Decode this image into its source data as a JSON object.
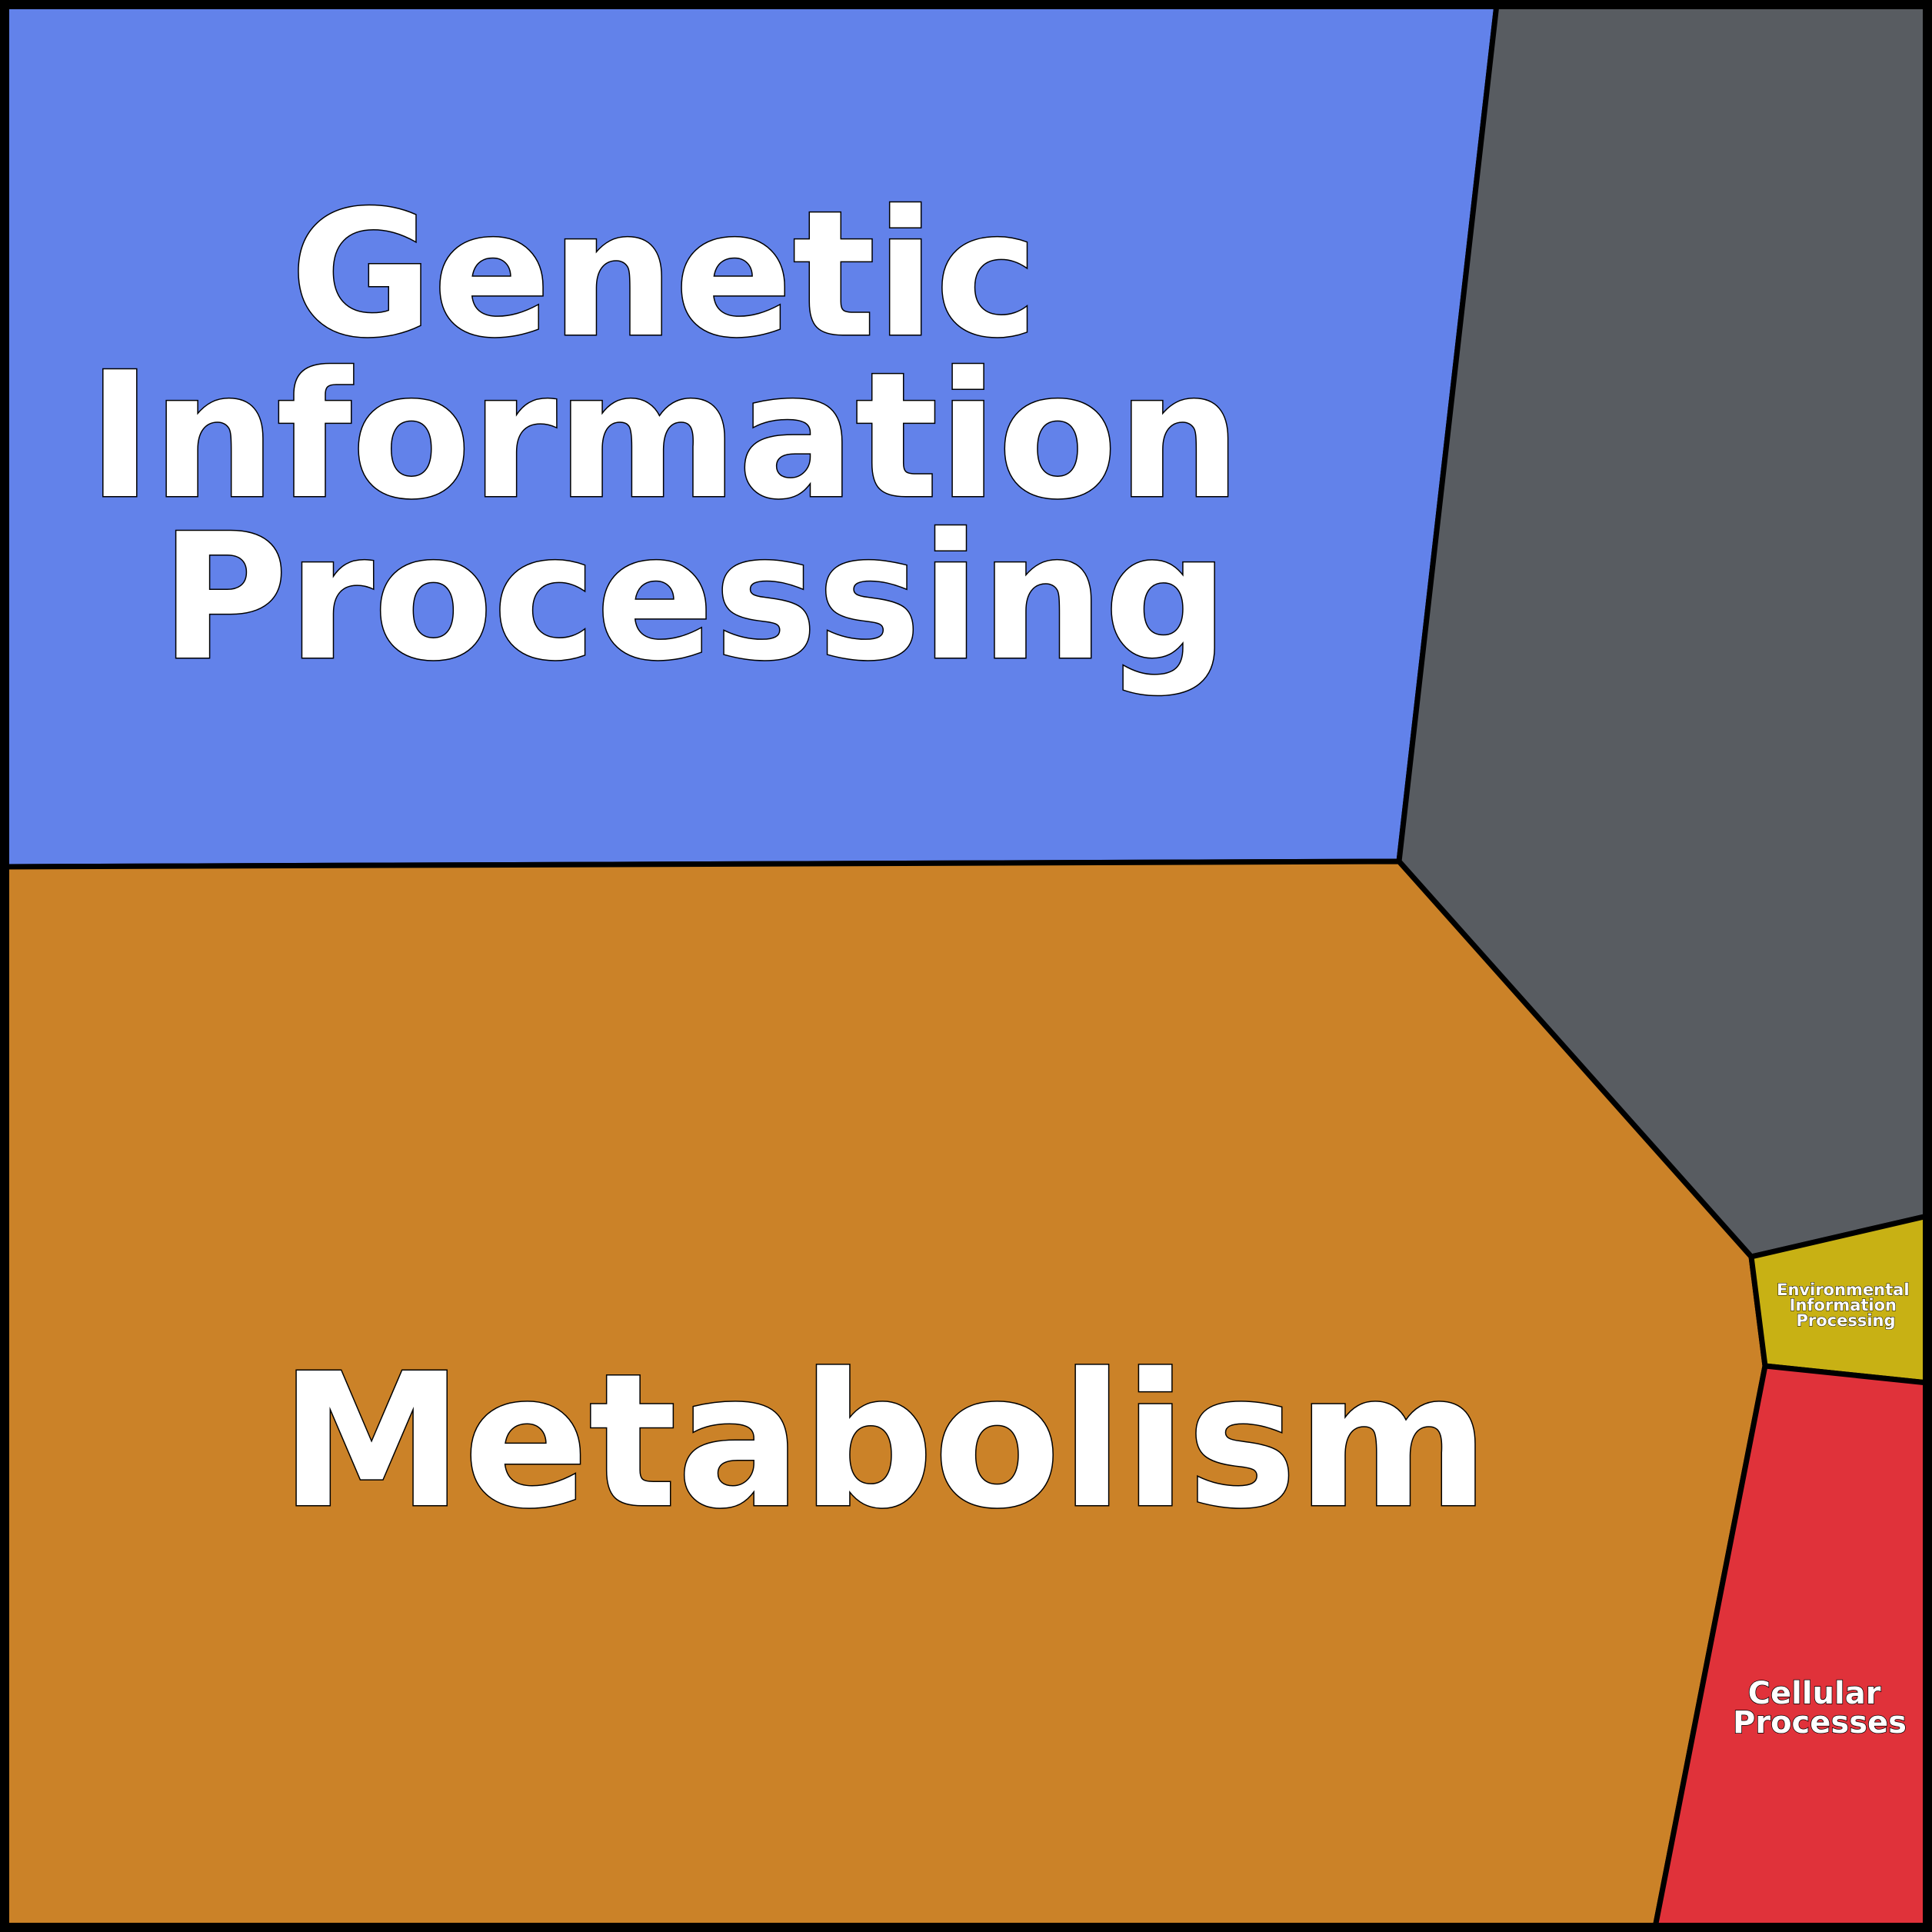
{
  "regions": {
    "genetic": {
      "lines": [
        "Genetic",
        "Information",
        "Processing"
      ],
      "color": "#6282EA"
    },
    "other": {
      "color": "#585C61"
    },
    "metabolism": {
      "lines": [
        "Metabolism"
      ],
      "color": "#CB8228"
    },
    "environmental": {
      "lines": [
        "Environmental",
        "Information",
        "Processing"
      ],
      "color": "#C8B114"
    },
    "cellular": {
      "lines": [
        "Cellular",
        "Processes"
      ],
      "color": "#E0323A"
    }
  }
}
